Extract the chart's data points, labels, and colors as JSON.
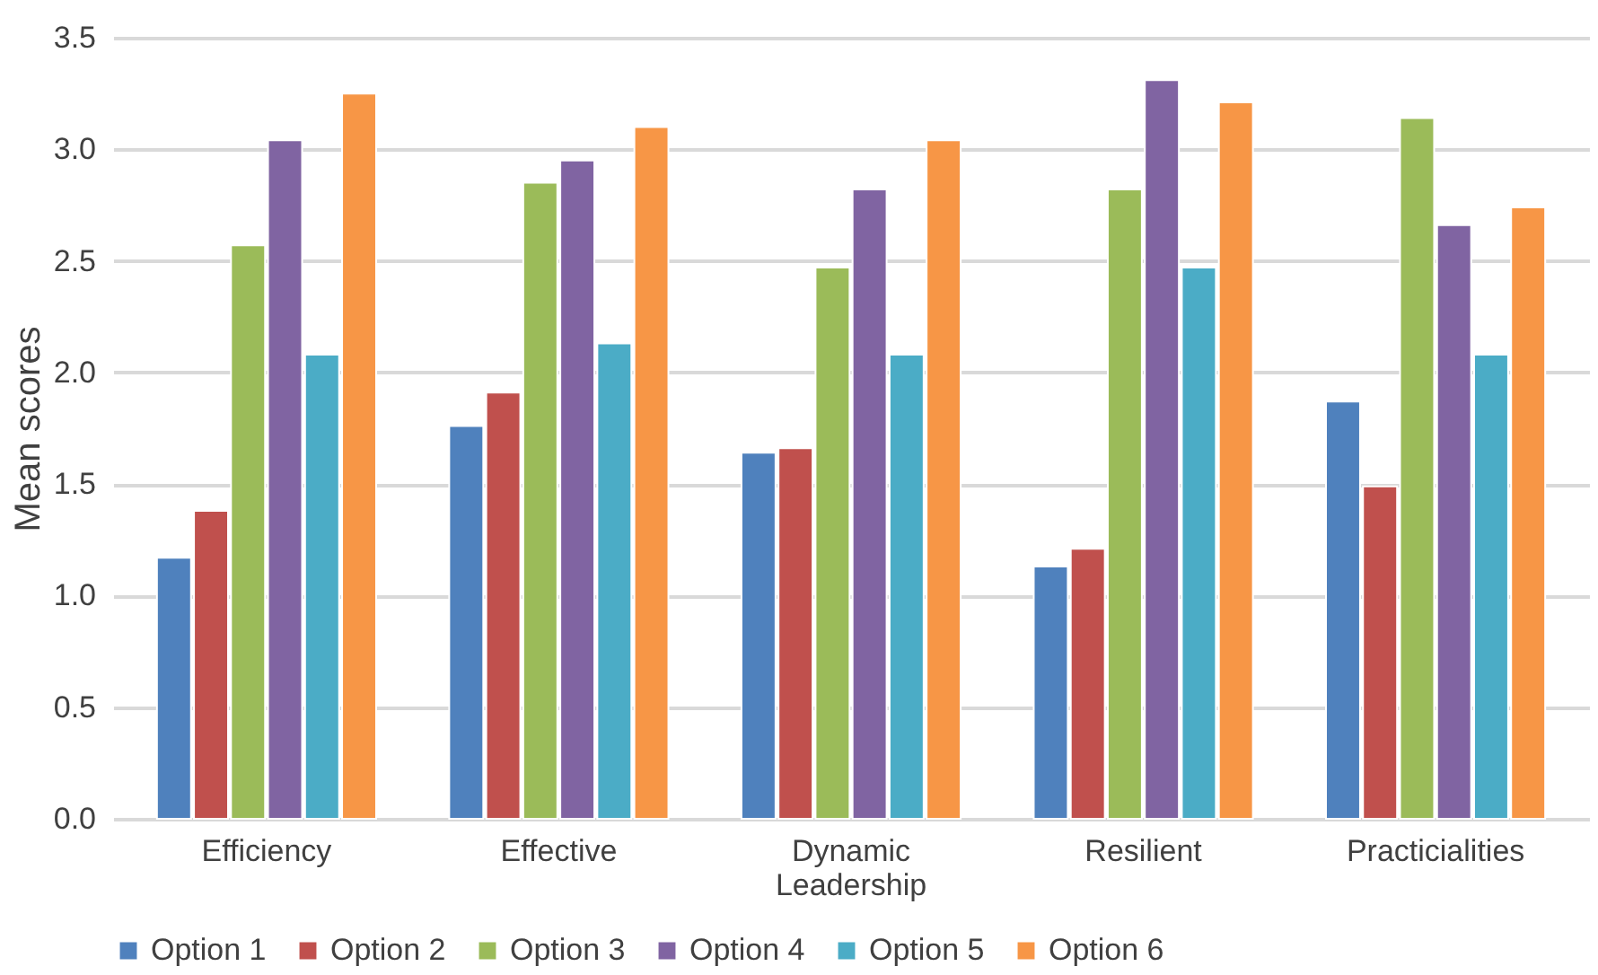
{
  "chart_data": {
    "type": "bar",
    "ylabel": "Mean scores",
    "categories": [
      "Efficiency",
      "Effective",
      "Dynamic Leadership",
      "Resilient",
      "Practicialities"
    ],
    "series": [
      {
        "name": "Option 1",
        "color": "#4f81bd",
        "values": [
          1.17,
          1.76,
          1.64,
          1.13,
          1.87
        ]
      },
      {
        "name": "Option 2",
        "color": "#c0504d",
        "values": [
          1.38,
          1.91,
          1.66,
          1.21,
          1.49
        ]
      },
      {
        "name": "Option 3",
        "color": "#9bbb59",
        "values": [
          2.57,
          2.85,
          2.47,
          2.82,
          3.14
        ]
      },
      {
        "name": "Option 4",
        "color": "#8064a2",
        "values": [
          3.04,
          2.95,
          2.82,
          3.31,
          2.66
        ]
      },
      {
        "name": "Option 5",
        "color": "#4bacc6",
        "values": [
          2.08,
          2.13,
          2.08,
          2.47,
          2.08
        ]
      },
      {
        "name": "Option 6",
        "color": "#f79646",
        "values": [
          3.25,
          3.1,
          3.04,
          3.21,
          2.74
        ]
      }
    ],
    "ylim": [
      0,
      3.5
    ],
    "yticks": [
      {
        "value": 0,
        "label": "0.0"
      },
      {
        "value": 0.5,
        "label": "0.5"
      },
      {
        "value": 1,
        "label": "1.0"
      },
      {
        "value": 1.5,
        "label": "1.5"
      },
      {
        "value": 2,
        "label": "2.0"
      },
      {
        "value": 2.5,
        "label": "2.5"
      },
      {
        "value": 3,
        "label": "3.0"
      },
      {
        "value": 3.5,
        "label": "3.5"
      }
    ],
    "grid": "y",
    "legend": "bottom"
  }
}
